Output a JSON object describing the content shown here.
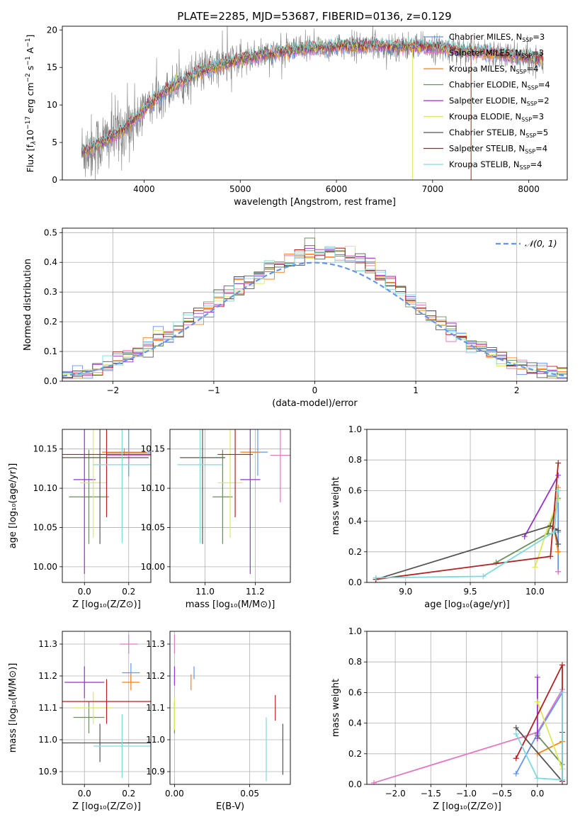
{
  "colors": {
    "Chabrier MILES": "#6495ed",
    "Salpeter MILES": "#e377c2",
    "Kroupa MILES": "#ff7f0e",
    "Chabrier ELODIE": "#6b8e5a",
    "Salpeter ELODIE": "#9932cc",
    "Kroupa ELODIE": "#dbe85a",
    "Chabrier STELIB": "#555555",
    "Salpeter STELIB": "#b22222",
    "Kroupa STELIB": "#7fd9dd",
    "normal": "#6495ed",
    "grid": "#b0b0b0",
    "observed_spectrum": "#808080"
  },
  "chart_data": [
    {
      "id": "spectrum",
      "type": "line",
      "title": "PLATE=2285, MJD=53687, FIBERID=0136, z=0.129",
      "xlabel": "wavelength [Angstrom, rest frame]",
      "ylabel": "Flux [fλ10⁻¹⁷ erg cm⁻² s⁻¹ A⁻¹]",
      "xlim": [
        3150,
        8400
      ],
      "ylim": [
        0,
        20.5
      ],
      "xticks": [
        4000,
        5000,
        6000,
        7000,
        8000
      ],
      "yticks": [
        0,
        5,
        10,
        15,
        20
      ],
      "grid": false,
      "legend_position": "top-right",
      "legend": [
        {
          "name": "Chabrier MILES",
          "sub": "3"
        },
        {
          "name": "Salpeter MILES",
          "sub": "3"
        },
        {
          "name": "Kroupa MILES",
          "sub": "4"
        },
        {
          "name": "Chabrier ELODIE",
          "sub": "4"
        },
        {
          "name": "Salpeter ELODIE",
          "sub": "2"
        },
        {
          "name": "Kroupa ELODIE",
          "sub": "3"
        },
        {
          "name": "Chabrier STELIB",
          "sub": "5"
        },
        {
          "name": "Salpeter STELIB",
          "sub": "4"
        },
        {
          "name": "Kroupa STELIB",
          "sub": "4"
        }
      ],
      "continuum": {
        "x": [
          3350,
          3450,
          3550,
          3650,
          3750,
          3850,
          3950,
          4050,
          4150,
          4300,
          4450,
          4600,
          4800,
          5000,
          5200,
          5400,
          5600,
          5800,
          6000,
          6200,
          6400,
          6600,
          6800,
          7000,
          7200,
          7400,
          7600,
          7800,
          8000,
          8150
        ],
        "y": [
          3.8,
          4.2,
          4.8,
          5.6,
          6.5,
          7.5,
          8.6,
          10.0,
          11.2,
          12.5,
          13.5,
          14.5,
          15.3,
          16.0,
          16.6,
          17.0,
          17.4,
          17.6,
          17.8,
          17.9,
          17.9,
          17.8,
          17.8,
          17.7,
          17.4,
          17.2,
          16.9,
          16.6,
          16.3,
          16.1
        ]
      },
      "dropouts": [
        {
          "series": "Kroupa ELODIE",
          "x": 6790
        },
        {
          "series": "Salpeter STELIB",
          "x": 7400
        }
      ]
    },
    {
      "id": "residuals",
      "type": "line",
      "xlabel": "(data-model)/error",
      "ylabel": "Normed distribution",
      "xlim": [
        -2.5,
        2.5
      ],
      "ylim": [
        0,
        0.515
      ],
      "xticks": [
        -2,
        -1,
        0,
        1,
        2
      ],
      "yticks": [
        0.0,
        0.1,
        0.2,
        0.3,
        0.4,
        0.5
      ],
      "grid": true,
      "legend_position": "top-right",
      "legend": [
        {
          "name": "𝒩(0, 1)",
          "style": "dashed"
        }
      ],
      "bin_width": 0.1
    },
    {
      "id": "age_vs_Z",
      "type": "scatter",
      "xlabel": "Z [log₁₀(Z/Z⊙)]",
      "ylabel": "age  [log₁₀(age/yr)]",
      "xlim": [
        -0.1,
        0.3
      ],
      "ylim": [
        9.98,
        10.175
      ],
      "xticks": [
        0.0,
        0.2
      ],
      "yticks": [
        10.0,
        10.05,
        10.1,
        10.15
      ],
      "grid": true,
      "points": [
        {
          "series": "Chabrier MILES",
          "x": 0.2,
          "y": 10.145,
          "xerr": 0.1,
          "yerr": 0.03
        },
        {
          "series": "Salpeter MILES",
          "x": 0.2,
          "y": 10.142,
          "xerr": 0.1,
          "yerr": 0.01
        },
        {
          "series": "Kroupa MILES",
          "x": 0.18,
          "y": 10.146,
          "xerr": 0.1,
          "yerr": 0.005
        },
        {
          "series": "Chabrier ELODIE",
          "x": 0.02,
          "y": 10.089,
          "xerr": 0.09,
          "yerr": 0.06
        },
        {
          "series": "Salpeter ELODIE",
          "x": 0.0,
          "y": 10.111,
          "xerr": 0.05,
          "yerr": 0.12
        },
        {
          "series": "Kroupa ELODIE",
          "x": 0.04,
          "y": 10.107,
          "xerr": 0.06,
          "yerr": 0.07
        },
        {
          "series": "Chabrier STELIB",
          "x": 0.07,
          "y": 10.139,
          "xerr": 0.22,
          "yerr": 0.11
        },
        {
          "series": "Salpeter STELIB",
          "x": 0.1,
          "y": 10.143,
          "xerr": 0.2,
          "yerr": 0.08
        },
        {
          "series": "Kroupa STELIB",
          "x": 0.17,
          "y": 10.13,
          "xerr": 0.13,
          "yerr": 0.1
        }
      ]
    },
    {
      "id": "age_vs_mass",
      "type": "scatter",
      "xlabel": "mass [log₁₀(M/M⊙)]",
      "ylabel": "",
      "xlim": [
        10.86,
        11.34
      ],
      "ylim": [
        9.98,
        10.175
      ],
      "xticks": [
        11.0,
        11.2
      ],
      "yticks": [
        10.0,
        10.05,
        10.1,
        10.15
      ],
      "grid": true,
      "points": [
        {
          "series": "Chabrier MILES",
          "x": 11.21,
          "y": 10.146,
          "xerr": 0.04,
          "yerr": 0.03
        },
        {
          "series": "Salpeter MILES",
          "x": 11.3,
          "y": 10.142,
          "xerr": 0.04,
          "yerr": 0.06
        },
        {
          "series": "Kroupa MILES",
          "x": 11.18,
          "y": 10.146,
          "xerr": 0.04,
          "yerr": 0.005
        },
        {
          "series": "Chabrier ELODIE",
          "x": 11.07,
          "y": 10.089,
          "xerr": 0.04,
          "yerr": 0.06
        },
        {
          "series": "Salpeter ELODIE",
          "x": 11.18,
          "y": 10.111,
          "xerr": 0.04,
          "yerr": 0.12
        },
        {
          "series": "Kroupa ELODIE",
          "x": 11.1,
          "y": 10.107,
          "xerr": 0.05,
          "yerr": 0.07
        },
        {
          "series": "Chabrier STELIB",
          "x": 10.99,
          "y": 10.139,
          "xerr": 0.09,
          "yerr": 0.11
        },
        {
          "series": "Salpeter STELIB",
          "x": 11.12,
          "y": 10.143,
          "xerr": 0.07,
          "yerr": 0.08
        },
        {
          "series": "Kroupa STELIB",
          "x": 10.98,
          "y": 10.13,
          "xerr": 0.09,
          "yerr": 0.1
        }
      ]
    },
    {
      "id": "weight_vs_age",
      "type": "line",
      "xlabel": "age  [log₁₀(age/yr)]",
      "ylabel": "mass weight",
      "xlim": [
        8.7,
        10.25
      ],
      "ylim": [
        0,
        1.0
      ],
      "xticks": [
        9.0,
        9.5,
        10.0
      ],
      "yticks": [
        0.0,
        0.2,
        0.4,
        0.6,
        0.8,
        1.0
      ],
      "grid": true,
      "series": [
        {
          "name": "Chabrier MILES",
          "x": [
            10.18,
            10.18,
            10.18
          ],
          "y": [
            0.6,
            0.33,
            0.07
          ]
        },
        {
          "name": "Kroupa MILES",
          "x": [
            10.18,
            10.15,
            10.18,
            10.18
          ],
          "y": [
            0.62,
            0.35,
            0.2,
            0.2
          ]
        },
        {
          "name": "Chabrier ELODIE",
          "x": [
            9.7,
            10.1,
            10.18
          ],
          "y": [
            0.13,
            0.32,
            0.55
          ]
        },
        {
          "name": "Salpeter ELODIE",
          "x": [
            9.92,
            10.18
          ],
          "y": [
            0.3,
            0.7
          ]
        },
        {
          "name": "Kroupa ELODIE",
          "x": [
            10.0,
            10.1,
            10.18
          ],
          "y": [
            0.1,
            0.36,
            0.54
          ]
        },
        {
          "name": "Chabrier STELIB",
          "x": [
            8.77,
            10.12,
            10.18,
            10.15,
            10.18
          ],
          "y": [
            0.02,
            0.37,
            0.34,
            0.35,
            0.25
          ]
        },
        {
          "name": "Salpeter STELIB",
          "x": [
            8.77,
            10.12,
            10.18
          ],
          "y": [
            0.02,
            0.17,
            0.78
          ]
        },
        {
          "name": "Kroupa STELIB",
          "x": [
            8.77,
            9.6,
            10.15,
            10.18
          ],
          "y": [
            0.03,
            0.04,
            0.33,
            0.6
          ]
        },
        {
          "name": "Salpeter MILES",
          "x": [
            10.18
          ],
          "y": [
            0.07
          ]
        }
      ]
    },
    {
      "id": "mass_vs_Z",
      "type": "scatter",
      "xlabel": "Z [log₁₀(Z/Z⊙)]",
      "ylabel": "mass [log₁₀(M/M⊙)]",
      "xlim": [
        -0.1,
        0.3
      ],
      "ylim": [
        10.86,
        11.34
      ],
      "xticks": [
        0.0,
        0.2
      ],
      "yticks": [
        10.9,
        11.0,
        11.1,
        11.2,
        11.3
      ],
      "grid": true,
      "points": [
        {
          "series": "Chabrier MILES",
          "x": 0.21,
          "y": 11.21,
          "xerr": 0.04,
          "yerr": 0.03
        },
        {
          "series": "Salpeter MILES",
          "x": 0.2,
          "y": 11.3,
          "xerr": 0.04,
          "yerr": 0.03
        },
        {
          "series": "Kroupa MILES",
          "x": 0.21,
          "y": 11.18,
          "xerr": 0.04,
          "yerr": 0.025
        },
        {
          "series": "Chabrier ELODIE",
          "x": 0.02,
          "y": 11.07,
          "xerr": 0.07,
          "yerr": 0.05
        },
        {
          "series": "Salpeter ELODIE",
          "x": 0.0,
          "y": 11.18,
          "xerr": 0.09,
          "yerr": 0.05
        },
        {
          "series": "Kroupa ELODIE",
          "x": 0.04,
          "y": 11.1,
          "xerr": 0.09,
          "yerr": 0.05
        },
        {
          "series": "Chabrier STELIB",
          "x": 0.07,
          "y": 10.99,
          "xerr": 0.23,
          "yerr": 0.06
        },
        {
          "series": "Salpeter STELIB",
          "x": 0.1,
          "y": 11.12,
          "xerr": 0.2,
          "yerr": 0.07
        },
        {
          "series": "Kroupa STELIB",
          "x": 0.17,
          "y": 10.98,
          "xerr": 0.13,
          "yerr": 0.1
        }
      ]
    },
    {
      "id": "mass_vs_ebv",
      "type": "scatter",
      "xlabel": "E(B-V)",
      "ylabel": "",
      "xlim": [
        -0.003,
        0.077
      ],
      "ylim": [
        10.86,
        11.34
      ],
      "xticks": [
        0.0,
        0.05
      ],
      "yticks": [
        10.9,
        11.0,
        11.1,
        11.2,
        11.3
      ],
      "grid": true,
      "points": [
        {
          "series": "Chabrier MILES",
          "x": 0.013,
          "y": 11.21,
          "xerr": 0,
          "yerr": 0.02
        },
        {
          "series": "Salpeter MILES",
          "x": 0.0,
          "y": 11.3,
          "xerr": 0,
          "yerr": 0.03
        },
        {
          "series": "Kroupa MILES",
          "x": 0.011,
          "y": 11.18,
          "xerr": 0,
          "yerr": 0.025
        },
        {
          "series": "Chabrier ELODIE",
          "x": 0.0,
          "y": 11.07,
          "xerr": 0,
          "yerr": 0.05
        },
        {
          "series": "Salpeter ELODIE",
          "x": 0.0,
          "y": 11.2,
          "xerr": 0,
          "yerr": 0.03
        },
        {
          "series": "Kroupa ELODIE",
          "x": 0.0,
          "y": 11.08,
          "xerr": 0,
          "yerr": 0.05
        },
        {
          "series": "Chabrier STELIB",
          "x": 0.072,
          "y": 10.97,
          "xerr": 0,
          "yerr": 0.08
        },
        {
          "series": "Salpeter STELIB",
          "x": 0.067,
          "y": 11.1,
          "xerr": 0,
          "yerr": 0.04
        },
        {
          "series": "Kroupa STELIB",
          "x": 0.061,
          "y": 10.97,
          "xerr": 0,
          "yerr": 0.1
        }
      ]
    },
    {
      "id": "weight_vs_Z",
      "type": "line",
      "xlabel": "Z [log₁₀(Z/Z⊙)]",
      "ylabel": "mass weight",
      "xlim": [
        -2.4,
        0.42
      ],
      "ylim": [
        0,
        1.0
      ],
      "xticks": [
        -2.0,
        -1.5,
        -1.0,
        -0.5,
        0.0
      ],
      "yticks": [
        0.0,
        0.2,
        0.4,
        0.6,
        0.8,
        1.0
      ],
      "grid": true,
      "series": [
        {
          "name": "Salpeter MILES",
          "x": [
            -2.3,
            0.0,
            0.35
          ],
          "y": [
            0.01,
            0.34,
            0.62
          ]
        },
        {
          "name": "Chabrier MILES",
          "x": [
            -0.3,
            0.0,
            0.35
          ],
          "y": [
            0.07,
            0.33,
            0.6
          ]
        },
        {
          "name": "Kroupa MILES",
          "x": [
            0.0,
            0.35
          ],
          "y": [
            0.2,
            0.28
          ]
        },
        {
          "name": "Chabrier ELODIE",
          "x": [
            0.0,
            0.35
          ],
          "y": [
            0.32,
            0.13
          ]
        },
        {
          "name": "Salpeter ELODIE",
          "x": [
            0.0,
            0.0
          ],
          "y": [
            0.3,
            0.7
          ]
        },
        {
          "name": "Kroupa ELODIE",
          "x": [
            0.0,
            0.35
          ],
          "y": [
            0.54,
            0.1
          ]
        },
        {
          "name": "Chabrier STELIB",
          "x": [
            -0.3,
            0.35,
            0.35
          ],
          "y": [
            0.37,
            0.02,
            0.34
          ]
        },
        {
          "name": "Salpeter STELIB",
          "x": [
            -0.3,
            0.35,
            0.35
          ],
          "y": [
            0.17,
            0.78,
            0.02
          ]
        },
        {
          "name": "Kroupa STELIB",
          "x": [
            -0.3,
            0.0,
            0.35,
            0.35
          ],
          "y": [
            0.33,
            0.04,
            0.03,
            0.6
          ]
        }
      ]
    }
  ]
}
